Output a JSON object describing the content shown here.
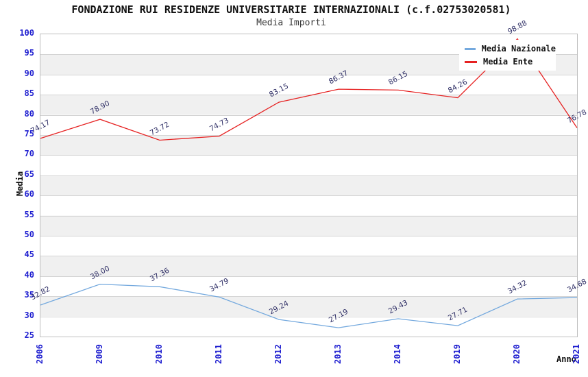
{
  "title": "FONDAZIONE RUI RESIDENZE UNIVERSITARIE INTERNAZIONALI (c.f.02753020581)",
  "subtitle": "Media Importi",
  "chart_data": {
    "type": "line",
    "categories": [
      "2006",
      "2009",
      "2010",
      "2011",
      "2012",
      "2013",
      "2014",
      "2019",
      "2020",
      "2021"
    ],
    "series": [
      {
        "name": "Media Nazionale",
        "color": "#74a9de",
        "values": [
          32.82,
          38.0,
          37.36,
          34.79,
          29.24,
          27.19,
          29.43,
          27.71,
          34.32,
          34.68
        ]
      },
      {
        "name": "Media Ente",
        "color": "#e62222",
        "values": [
          74.17,
          78.9,
          73.72,
          74.73,
          83.15,
          86.37,
          86.15,
          84.26,
          98.88,
          76.78
        ]
      }
    ],
    "title": "FONDAZIONE RUI RESIDENZE UNIVERSITARIE INTERNAZIONALI (c.f.02753020581)",
    "subtitle": "Media Importi",
    "xlabel": "Anno",
    "ylabel": "Media",
    "ylim": [
      25,
      100
    ],
    "ytick_step": 5,
    "grid": true,
    "band_fill": "alternating horizontal bands white/gray",
    "legend_position": "top-right",
    "value_label_decimals": 2
  },
  "colors": {
    "tick_label": "#2020d0",
    "value_label": "#2f2f66",
    "band_gray": "#f0f0f0",
    "gridline": "#d4d4d4",
    "plot_border": "#bdbdbd",
    "title_text": "#111111"
  }
}
